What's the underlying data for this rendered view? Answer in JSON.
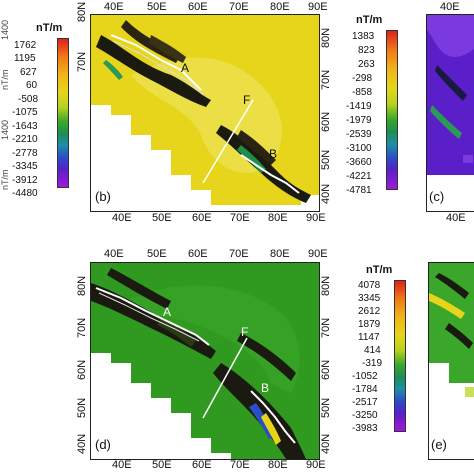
{
  "panel_b": {
    "label": "(b)",
    "letters": [
      "A",
      "B",
      "F"
    ],
    "lon_ticks_top": [
      "40E",
      "50E",
      "60E",
      "70E",
      "80E",
      "90E"
    ],
    "lon_ticks_bottom": [
      "40E",
      "50E",
      "60E",
      "70E",
      "80E",
      "90E"
    ],
    "lat_ticks_left": [
      "80N",
      "70N"
    ],
    "lat_ticks_right": [
      "80N",
      "70N",
      "60N",
      "50N",
      "40N"
    ]
  },
  "panel_d": {
    "label": "(d)",
    "letters": [
      "A",
      "B",
      "F"
    ],
    "lon_ticks_top": [
      "40E",
      "50E",
      "60E",
      "70E",
      "80E",
      "90E"
    ],
    "lon_ticks_bottom": [
      "40E",
      "50E",
      "60E",
      "70E",
      "80E",
      "90E"
    ],
    "lat_ticks_left": [
      "80N",
      "70N",
      "60N",
      "50N",
      "40N"
    ],
    "lat_ticks_right": [
      "80N",
      "70N",
      "60N",
      "50N",
      "40N"
    ]
  },
  "panel_c": {
    "label": "(c)",
    "lon_ticks_top": [
      "40E"
    ],
    "lon_ticks_bottom": [
      "40E"
    ]
  },
  "panel_e": {
    "label": "(e)"
  },
  "colorbar_b": {
    "unit": "nT/m",
    "values": [
      "1762",
      "1195",
      "627",
      "60",
      "-508",
      "-1075",
      "-1643",
      "-2210",
      "-2778",
      "-3345",
      "-3912",
      "-4480"
    ]
  },
  "colorbar_c": {
    "unit": "nT/m",
    "values": [
      "1383",
      "823",
      "263",
      "-298",
      "-858",
      "-1419",
      "-1979",
      "-2539",
      "-3100",
      "-3660",
      "-4221",
      "-4781"
    ]
  },
  "colorbar_d": {
    "unit": "nT/m",
    "values": [
      "4078",
      "3345",
      "2612",
      "1879",
      "1147",
      "414",
      "-319",
      "-1052",
      "-1784",
      "-2517",
      "-3250",
      "-3983"
    ]
  },
  "left_edge_ticks": [
    "1400",
    "nT/m",
    "1400",
    "nT/m"
  ],
  "colors": {
    "yellow_field": "#e6d51a",
    "green_field": "#2f9a1f",
    "purple_field": "#5a1fc8",
    "dark_anomaly": "#1a1a10",
    "fault_line": "#ffffff"
  }
}
